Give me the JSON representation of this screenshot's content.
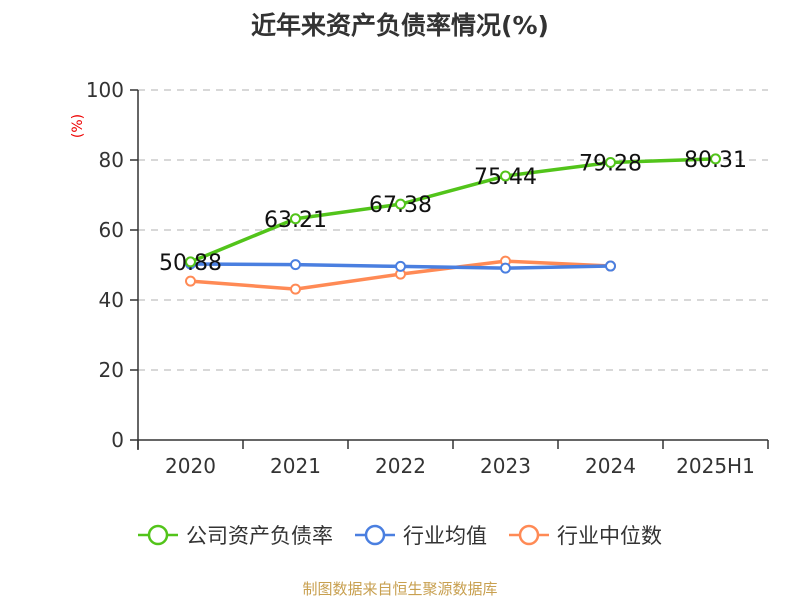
{
  "title": "近年来资产负债率情况(%)",
  "source": "制图数据来自恒生聚源数据库",
  "chart_data": {
    "type": "line",
    "title": "近年来资产负债率情况(%)",
    "xlabel": "",
    "ylabel": "(%)",
    "ylim": [
      0,
      100
    ],
    "yticks": [
      0,
      20,
      40,
      60,
      80,
      100
    ],
    "grid": true,
    "legend_position": "bottom",
    "categories": [
      "2020",
      "2021",
      "2022",
      "2023",
      "2024",
      "2025H1"
    ],
    "series": [
      {
        "name": "公司资产负债率",
        "color": "#52c41a",
        "values": [
          50.88,
          63.21,
          67.38,
          75.44,
          79.28,
          80.31
        ],
        "labels": [
          "50.88",
          "63.21",
          "67.38",
          "75.44",
          "79.28",
          "80.31"
        ]
      },
      {
        "name": "行业均值",
        "color": "#4a7fe0",
        "values": [
          50.3,
          50.1,
          49.6,
          49.1,
          49.7,
          null
        ]
      },
      {
        "name": "行业中位数",
        "color": "#ff8a55",
        "values": [
          45.4,
          43.1,
          47.4,
          51.1,
          49.7,
          null
        ]
      }
    ]
  },
  "legend": [
    {
      "label": "公司资产负债率",
      "color": "#52c41a"
    },
    {
      "label": "行业均值",
      "color": "#4a7fe0"
    },
    {
      "label": "行业中位数",
      "color": "#ff8a55"
    }
  ]
}
